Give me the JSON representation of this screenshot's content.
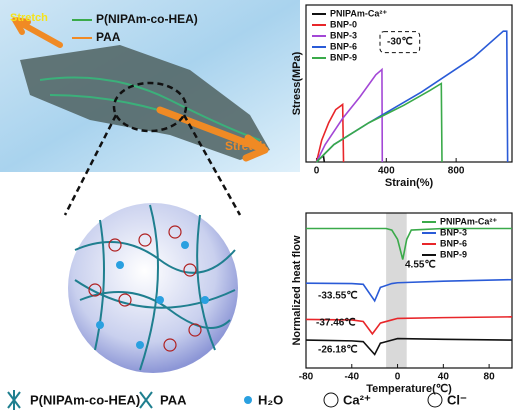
{
  "illustration": {
    "stretch_left": "Stretch",
    "stretch_right": "Stretch",
    "label_1": "P(NIPAm-co-HEA)",
    "label_2": "PAA"
  },
  "legend": {
    "items": [
      "P(NIPAm-co-HEA)",
      "PAA",
      "H₂O",
      "Ca²⁺",
      "Cl⁻"
    ]
  },
  "chart_data": [
    {
      "type": "line",
      "xlabel": "Strain(%)",
      "ylabel": "Stress(MPa)",
      "xlim": [
        -60,
        1120
      ],
      "xticks": [
        0,
        400,
        800
      ],
      "ylim": [
        0,
        0.18
      ],
      "legend": "upper left",
      "annotations": [
        {
          "text": "-30℃",
          "boxed": true
        }
      ],
      "series": [
        {
          "name": "PNIPAm-Ca²⁺",
          "color": "#111111",
          "x": [
            0,
            20,
            40,
            45
          ],
          "values": [
            0,
            0.004,
            0.007,
            0
          ]
        },
        {
          "name": "BNP-0",
          "color": "#e8262a",
          "x": [
            0,
            30,
            70,
            110,
            150,
            155
          ],
          "values": [
            0,
            0.025,
            0.045,
            0.06,
            0.066,
            0
          ]
        },
        {
          "name": "BNP-3",
          "color": "#a347d6",
          "x": [
            0,
            50,
            150,
            250,
            340,
            375,
            377
          ],
          "values": [
            0,
            0.02,
            0.05,
            0.075,
            0.1,
            0.106,
            0
          ]
        },
        {
          "name": "BNP-6",
          "color": "#2a5bd7",
          "x": [
            0,
            100,
            300,
            600,
            900,
            1070,
            1090,
            1095
          ],
          "values": [
            0,
            0.02,
            0.045,
            0.08,
            0.12,
            0.15,
            0.15,
            0
          ]
        },
        {
          "name": "BNP-9",
          "color": "#3aaa4a",
          "x": [
            0,
            100,
            300,
            500,
            650,
            715,
            719
          ],
          "values": [
            0,
            0.02,
            0.045,
            0.065,
            0.082,
            0.09,
            0
          ]
        }
      ]
    },
    {
      "type": "line",
      "xlabel": "Temperature(℃)",
      "ylabel": "Normalized heat flow",
      "xlim": [
        -80,
        100
      ],
      "xticks": [
        -80,
        -40,
        0,
        40,
        80
      ],
      "ylim": [
        0,
        10
      ],
      "legend": "upper right",
      "shaded_range": [
        -10,
        8
      ],
      "annotations": [
        {
          "text": "4.55℃"
        },
        {
          "text": "-33.55℃"
        },
        {
          "text": "-37.46℃"
        },
        {
          "text": "-26.18℃"
        }
      ],
      "series": [
        {
          "name": "PNIPAm-Ca²⁺",
          "color": "#3aaa4a",
          "x": [
            -80,
            -40,
            -10,
            -5,
            0,
            4.55,
            8,
            12,
            40,
            100
          ],
          "values": [
            9.0,
            9.0,
            9.0,
            8.9,
            8.3,
            7.0,
            8.3,
            8.9,
            9.0,
            9.0
          ]
        },
        {
          "name": "BNP-3",
          "color": "#2a5bd7",
          "x": [
            -80,
            -40,
            -30,
            -20,
            -15,
            -5,
            0,
            40,
            100
          ],
          "values": [
            5.47,
            5.45,
            5.4,
            4.33,
            5.2,
            5.45,
            5.5,
            5.6,
            5.7
          ]
        },
        {
          "name": "BNP-6",
          "color": "#e8262a",
          "x": [
            -80,
            -40,
            -30,
            -22,
            -15,
            -5,
            0,
            40,
            100
          ],
          "values": [
            3.13,
            3.1,
            3.0,
            2.2,
            2.9,
            3.1,
            3.2,
            3.25,
            3.3
          ]
        },
        {
          "name": "BNP-9",
          "color": "#111111",
          "x": [
            -80,
            -40,
            -30,
            -20,
            -15,
            -5,
            0,
            40,
            100
          ],
          "values": [
            1.8,
            1.75,
            1.7,
            0.87,
            1.6,
            1.8,
            1.9,
            1.85,
            1.8
          ]
        }
      ]
    }
  ]
}
